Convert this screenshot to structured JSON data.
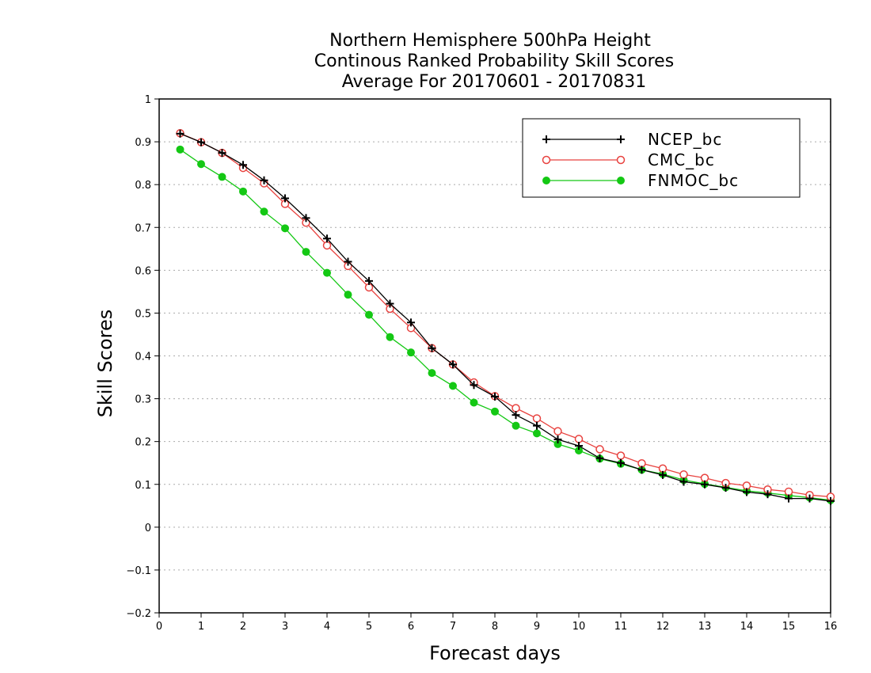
{
  "chart_data": {
    "type": "line",
    "title": [
      "Northern Hemisphere 500hPa Height",
      "Continous Ranked Probability Skill Scores",
      "Average For 20170601 - 20170831"
    ],
    "xlabel": "Forecast days",
    "ylabel": "Skill Scores",
    "xlim": [
      0,
      16
    ],
    "ylim": [
      -0.2,
      1
    ],
    "x_ticks": [
      0,
      1,
      2,
      3,
      4,
      5,
      6,
      7,
      8,
      9,
      10,
      11,
      12,
      13,
      14,
      15,
      16
    ],
    "y_ticks": [
      -0.2,
      -0.1,
      0,
      0.1,
      0.2,
      0.3,
      0.4,
      0.5,
      0.6,
      0.7,
      0.8,
      0.9,
      1
    ],
    "x_tick_labels": [
      "0",
      "1",
      "2",
      "3",
      "4",
      "5",
      "6",
      "7",
      "8",
      "9",
      "10",
      "11",
      "12",
      "13",
      "14",
      "15",
      "16"
    ],
    "y_tick_labels": [
      "−0.2",
      "−0.1",
      "0",
      "0.1",
      "0.2",
      "0.3",
      "0.4",
      "0.5",
      "0.6",
      "0.7",
      "0.8",
      "0.9",
      "1"
    ],
    "grid": true,
    "legend_position": "top-right",
    "x": [
      0.5,
      1,
      1.5,
      2,
      2.5,
      3,
      3.5,
      4,
      4.5,
      5,
      5.5,
      6,
      6.5,
      7,
      7.5,
      8,
      8.5,
      9,
      9.5,
      10,
      10.5,
      11,
      11.5,
      12,
      12.5,
      13,
      13.5,
      14,
      14.5,
      15,
      15.5,
      16
    ],
    "series": [
      {
        "name": "NCEP_bc",
        "color": "#000000",
        "marker": "plus",
        "values": [
          0.919,
          0.899,
          0.874,
          0.846,
          0.81,
          0.768,
          0.722,
          0.674,
          0.62,
          0.575,
          0.522,
          0.478,
          0.418,
          0.38,
          0.332,
          0.305,
          0.262,
          0.237,
          0.205,
          0.19,
          0.161,
          0.15,
          0.134,
          0.122,
          0.106,
          0.1,
          0.092,
          0.082,
          0.077,
          0.067,
          0.067,
          0.061
        ]
      },
      {
        "name": "CMC_bc",
        "color": "#e8423f",
        "marker": "open-circle",
        "values": [
          0.92,
          0.899,
          0.874,
          0.839,
          0.803,
          0.755,
          0.711,
          0.658,
          0.61,
          0.56,
          0.51,
          0.465,
          0.418,
          0.38,
          0.338,
          0.306,
          0.278,
          0.254,
          0.224,
          0.206,
          0.182,
          0.167,
          0.149,
          0.137,
          0.123,
          0.115,
          0.103,
          0.097,
          0.088,
          0.083,
          0.075,
          0.071
        ]
      },
      {
        "name": "FNMOC_bc",
        "color": "#14c814",
        "marker": "filled-circle",
        "values": [
          0.882,
          0.848,
          0.818,
          0.784,
          0.737,
          0.698,
          0.643,
          0.594,
          0.543,
          0.496,
          0.444,
          0.408,
          0.36,
          0.33,
          0.291,
          0.27,
          0.237,
          0.219,
          0.194,
          0.179,
          0.16,
          0.148,
          0.134,
          0.124,
          0.11,
          0.101,
          0.093,
          0.085,
          0.08,
          0.074,
          0.069,
          0.063
        ]
      }
    ]
  }
}
